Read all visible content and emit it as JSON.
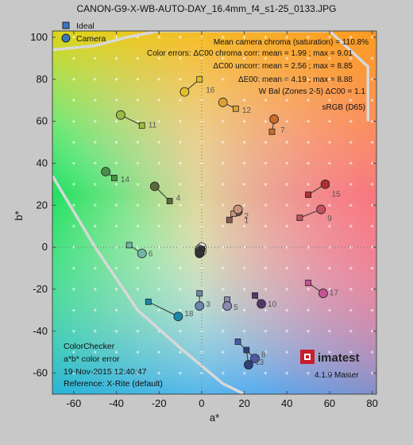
{
  "title": "CANON-G9-X-WB-AUTO-DAY_16.4mm_f4_s1-25_0133.JPG",
  "chart_data": {
    "type": "scatter",
    "xlabel": "a*",
    "ylabel": "b*",
    "xlim": [
      -70,
      82
    ],
    "ylim": [
      -70,
      103
    ],
    "xticks": [
      -60,
      -40,
      -20,
      0,
      20,
      40,
      60,
      80
    ],
    "yticks": [
      -60,
      -40,
      -20,
      0,
      20,
      40,
      60,
      80,
      100
    ],
    "legend": [
      {
        "name": "Ideal",
        "marker": "square"
      },
      {
        "name": "Camera",
        "marker": "circle"
      }
    ],
    "annotations": [
      "Mean camera chroma (saturation) = 110.8%",
      "Color errors:  ΔC00 chroma corr: mean = 1.99 ; max = 9.01",
      "ΔC00 uncorr: mean = 2.56 ; max = 8.85",
      "ΔE00: mean = 4.19 ; max = 8.88",
      "W Bal (Zones 2-5)   ΔC00 = 1.1",
      "sRGB (D65)"
    ],
    "info_lines": [
      "ColorChecker",
      "a*b* color error",
      "19-Nov-2015 12:40:47",
      "Reference: X-Rite (default)"
    ],
    "logo": "imatest",
    "version": "4.1.9 Master",
    "points": [
      {
        "label": "1",
        "ideal": [
          13,
          13
        ],
        "camera": [
          17,
          17
        ],
        "color": "#8a5a4a"
      },
      {
        "label": "2",
        "ideal": [
          15,
          16
        ],
        "camera": [
          17,
          18
        ],
        "color": "#c8947e"
      },
      {
        "label": "3",
        "ideal": [
          -1,
          -22
        ],
        "camera": [
          -1,
          -28
        ],
        "color": "#6b86aa"
      },
      {
        "label": "4",
        "ideal": [
          -15,
          22
        ],
        "camera": [
          -22,
          29
        ],
        "color": "#5a6a3a"
      },
      {
        "label": "5",
        "ideal": [
          12,
          -25
        ],
        "camera": [
          12,
          -28
        ],
        "color": "#8a8ab2"
      },
      {
        "label": "6",
        "ideal": [
          -34,
          1
        ],
        "camera": [
          -28,
          -3
        ],
        "color": "#70b6a6"
      },
      {
        "label": "7",
        "ideal": [
          33,
          55
        ],
        "camera": [
          34,
          61
        ],
        "color": "#cc6a28"
      },
      {
        "label": "8",
        "ideal": [
          17,
          -45
        ],
        "camera": [
          25,
          -53
        ],
        "color": "#4a5aa4"
      },
      {
        "label": "9",
        "ideal": [
          46,
          14
        ],
        "camera": [
          56,
          18
        ],
        "color": "#c25260"
      },
      {
        "label": "10",
        "ideal": [
          25,
          -23
        ],
        "camera": [
          28,
          -27
        ],
        "color": "#52386a"
      },
      {
        "label": "11",
        "ideal": [
          -28,
          58
        ],
        "camera": [
          -38,
          63
        ],
        "color": "#9abc44"
      },
      {
        "label": "12",
        "ideal": [
          16,
          66
        ],
        "camera": [
          10,
          69
        ],
        "color": "#e0a030"
      },
      {
        "label": "13",
        "ideal": [
          21,
          -49
        ],
        "camera": [
          22,
          -56
        ],
        "color": "#30407a"
      },
      {
        "label": "14",
        "ideal": [
          -41,
          33
        ],
        "camera": [
          -45,
          36
        ],
        "color": "#4a9048"
      },
      {
        "label": "15",
        "ideal": [
          50,
          25
        ],
        "camera": [
          58,
          30
        ],
        "color": "#b03030"
      },
      {
        "label": "16",
        "ideal": [
          -1,
          80
        ],
        "camera": [
          -8,
          74
        ],
        "color": "#e4c028"
      },
      {
        "label": "17",
        "ideal": [
          50,
          -17
        ],
        "camera": [
          57,
          -22
        ],
        "color": "#c45494"
      },
      {
        "label": "18",
        "ideal": [
          -25,
          -26
        ],
        "camera": [
          -11,
          -33
        ],
        "color": "#1e86a8"
      },
      {
        "label": "",
        "ideal": [
          0,
          -1
        ],
        "camera": [
          0,
          0
        ],
        "color": "#f2f2f2"
      },
      {
        "label": "",
        "ideal": [
          0,
          -1
        ],
        "camera": [
          0,
          -2
        ],
        "color": "#cfcfcf"
      },
      {
        "label": "",
        "ideal": [
          0,
          -1
        ],
        "camera": [
          -1,
          -1
        ],
        "color": "#a0a0a0"
      },
      {
        "label": "",
        "ideal": [
          0,
          -1
        ],
        "camera": [
          -1,
          -2
        ],
        "color": "#7a7a7a"
      },
      {
        "label": "",
        "ideal": [
          0,
          -1
        ],
        "camera": [
          -1,
          -2
        ],
        "color": "#525252"
      },
      {
        "label": "",
        "ideal": [
          0,
          -1
        ],
        "camera": [
          -1,
          -3
        ],
        "color": "#333333"
      }
    ],
    "gamut_boundary": [
      [
        -70,
        34
      ],
      [
        -50,
        0
      ],
      [
        -30,
        -30
      ],
      [
        -10,
        -48
      ],
      [
        10,
        -65
      ],
      [
        20,
        -70
      ]
    ],
    "gamut_top": [
      [
        -70,
        94
      ],
      [
        -50,
        96
      ],
      [
        -35,
        100
      ],
      [
        -20,
        103
      ],
      [
        60,
        103
      ],
      [
        78,
        86
      ],
      [
        78,
        60
      ]
    ],
    "grid": "dotted crosses at 10-unit intervals"
  }
}
